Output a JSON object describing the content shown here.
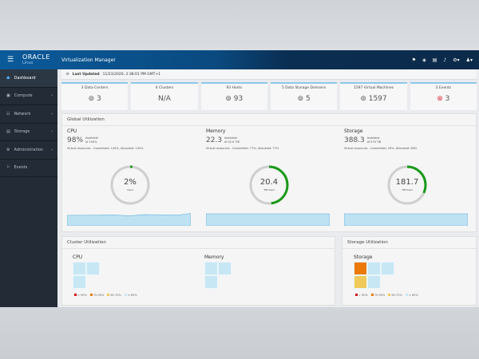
{
  "header": {
    "brand": "ORACLE",
    "brand_sub": "Linux",
    "title": "Virtualization Manager",
    "icons": [
      "flag-icon",
      "tag-icon",
      "tasks-icon",
      "bell-icon",
      "gear-icon",
      "user-icon"
    ]
  },
  "sidebar": {
    "items": [
      {
        "label": "Dashboard",
        "icon": "dashboard-icon"
      },
      {
        "label": "Compute",
        "icon": "compute-icon",
        "chevron": true
      },
      {
        "label": "Network",
        "icon": "network-icon",
        "chevron": true
      },
      {
        "label": "Storage",
        "icon": "storage-icon",
        "chevron": true
      },
      {
        "label": "Administration",
        "icon": "admin-icon",
        "chevron": true
      },
      {
        "label": "Events",
        "icon": "flag-icon"
      }
    ]
  },
  "last_updated": {
    "label": "Last Updated",
    "value": "11/23/2020, 2:38:01 PM GMT+1"
  },
  "cards": [
    {
      "label": "3 Data Centers",
      "value": "3",
      "icon": "⊚"
    },
    {
      "label": "4 Clusters",
      "value": "N/A",
      "icon": ""
    },
    {
      "label": "93 Hosts",
      "value": "93",
      "icon": "⊚"
    },
    {
      "label": "5 Data Storage Domains",
      "value": "5",
      "icon": "⊚"
    },
    {
      "label": "1597 Virtual Machines",
      "value": "1597",
      "icon": "⊚"
    },
    {
      "label": "3 Events",
      "value": "3",
      "icon": "⊗"
    }
  ],
  "global": {
    "title": "Global Utilization",
    "cols": [
      {
        "name": "CPU",
        "big": "98%",
        "avail": "Available",
        "of": "of 100%",
        "vr": "Virtual resources - Committed: 145%, Allocated: 145%",
        "center": "2%",
        "center_sub": "Used",
        "used_fraction": 0.02
      },
      {
        "name": "Memory",
        "big": "22.3",
        "avail": "Available",
        "of": "of 42.6 TiB",
        "vr": "Virtual resources - Committed: 77%, Allocated: 77%",
        "center": "20.4",
        "center_sub": "TiB Used",
        "used_fraction": 0.48
      },
      {
        "name": "Storage",
        "big": "388.3",
        "avail": "Available",
        "of": "of 570 TiB",
        "vr": "Virtual resources - Committed: 26%, Allocated: 66%",
        "center": "181.7",
        "center_sub": "TiB Used",
        "used_fraction": 0.32
      }
    ]
  },
  "colors": {
    "used": "#1a9a1a",
    "track": "#cfcfcf",
    "spark_fill": "#bfe2f2",
    "spark_line": "#4aa8d8"
  },
  "cluster": {
    "title": "Cluster Utilization",
    "cpu": "CPU",
    "memory": "Memory"
  },
  "storage_util": {
    "title": "Storage Utilization",
    "sub": "Storage"
  },
  "legend": [
    {
      "label": "> 90%",
      "color": "#d0121b"
    },
    {
      "label": "75-90%",
      "color": "#ec7a08"
    },
    {
      "label": "65-75%",
      "color": "#f0c95a"
    },
    {
      "label": "< 65%",
      "color": "#c8e7f4"
    }
  ]
}
